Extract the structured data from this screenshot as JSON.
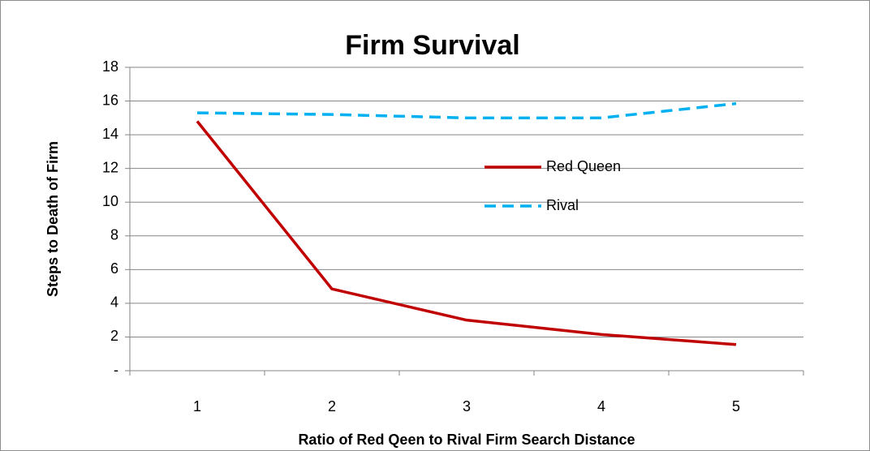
{
  "chart_data": {
    "type": "line",
    "title": "Firm Survival",
    "x_label": "Ratio of Red Qeen to Rival Firm Search Distance",
    "y_label": "Steps to Death of Firm",
    "categories": [
      "1",
      "2",
      "3",
      "4",
      "5"
    ],
    "series": [
      {
        "name": "Red Queen",
        "color": "#c00000",
        "dash": "solid",
        "values": [
          14.8,
          4.85,
          3.0,
          2.15,
          1.55
        ]
      },
      {
        "name": "Rival",
        "color": "#00b0f0",
        "dash": "dashed",
        "values": [
          15.3,
          15.2,
          15.0,
          15.0,
          15.85
        ]
      }
    ],
    "ylim": [
      0,
      18
    ],
    "yticks": [
      {
        "value": 0,
        "label": "-"
      },
      2,
      4,
      6,
      8,
      10,
      12,
      14,
      16,
      18
    ],
    "grid": true
  }
}
